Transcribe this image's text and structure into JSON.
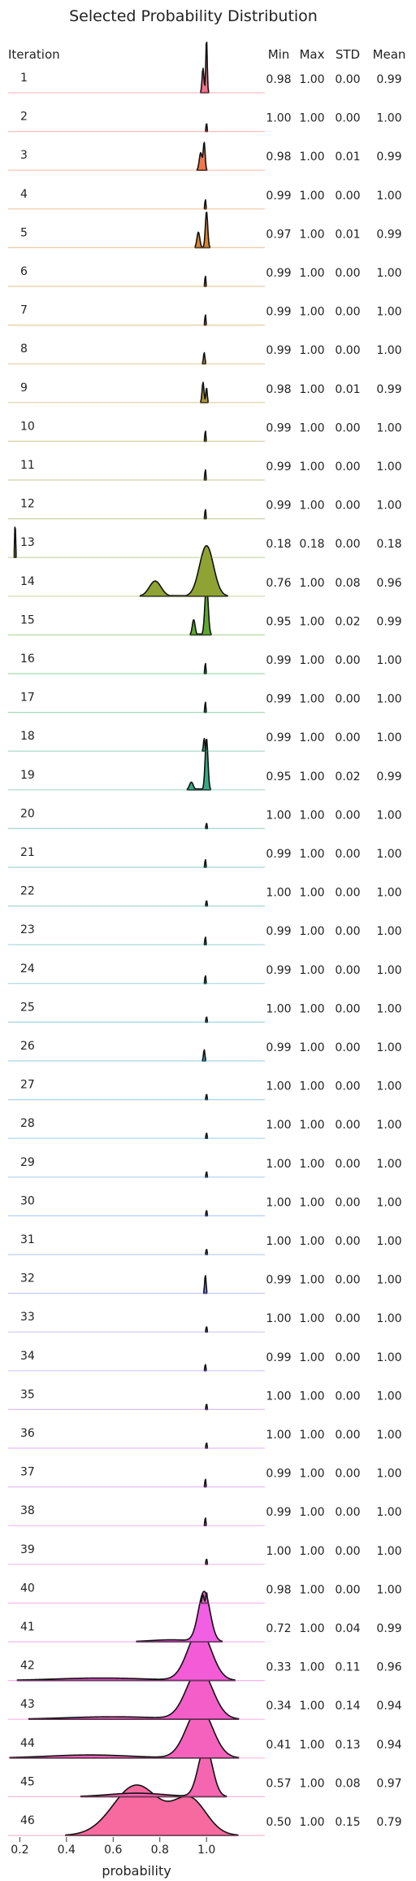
{
  "chart_data": {
    "type": "area",
    "title": "Selected Probability Distribution",
    "xlabel": "probability",
    "xlim": [
      0.15,
      1.25
    ],
    "xticks": [
      "0.2",
      "0.4",
      "0.6",
      "0.8",
      "1.0"
    ],
    "xtick_values": [
      0.2,
      0.4,
      0.6,
      0.8,
      1.0
    ],
    "row_header": "Iteration",
    "stat_headers": [
      "Min",
      "Max",
      "STD",
      "Mean"
    ],
    "series": [
      {
        "name": "1",
        "min": "0.98",
        "max": "1.00",
        "std": "0.00",
        "mean": "0.99",
        "color": "#f77189",
        "components": [
          [
            0.985,
            0.004,
            0.45
          ],
          [
            1.0,
            0.003,
            1.0
          ]
        ]
      },
      {
        "name": "2",
        "min": "1.00",
        "max": "1.00",
        "std": "0.00",
        "mean": "1.00",
        "color": "#f7736e",
        "components": [
          [
            1.0,
            0.002,
            0.15
          ]
        ]
      },
      {
        "name": "3",
        "min": "0.98",
        "max": "1.00",
        "std": "0.01",
        "mean": "0.99",
        "color": "#f3764a",
        "components": [
          [
            0.975,
            0.006,
            0.35
          ],
          [
            0.99,
            0.004,
            0.55
          ]
        ]
      },
      {
        "name": "4",
        "min": "0.99",
        "max": "1.00",
        "std": "0.00",
        "mean": "1.00",
        "color": "#e7802f",
        "components": [
          [
            0.995,
            0.002,
            0.18
          ]
        ]
      },
      {
        "name": "5",
        "min": "0.97",
        "max": "1.00",
        "std": "0.01",
        "mean": "0.99",
        "color": "#d98532",
        "components": [
          [
            0.965,
            0.006,
            0.3
          ],
          [
            1.0,
            0.005,
            0.7
          ]
        ]
      },
      {
        "name": "6",
        "min": "0.99",
        "max": "1.00",
        "std": "0.00",
        "mean": "1.00",
        "color": "#ce8b32",
        "components": [
          [
            0.995,
            0.002,
            0.2
          ]
        ]
      },
      {
        "name": "7",
        "min": "0.99",
        "max": "1.00",
        "std": "0.00",
        "mean": "1.00",
        "color": "#c38f32",
        "components": [
          [
            0.995,
            0.002,
            0.2
          ]
        ]
      },
      {
        "name": "8",
        "min": "0.99",
        "max": "1.00",
        "std": "0.00",
        "mean": "1.00",
        "color": "#b99332",
        "components": [
          [
            0.99,
            0.003,
            0.22
          ]
        ]
      },
      {
        "name": "9",
        "min": "0.98",
        "max": "1.00",
        "std": "0.01",
        "mean": "0.99",
        "color": "#ae9632",
        "components": [
          [
            0.985,
            0.004,
            0.4
          ],
          [
            1.0,
            0.003,
            0.3
          ]
        ]
      },
      {
        "name": "10",
        "min": "0.99",
        "max": "1.00",
        "std": "0.00",
        "mean": "1.00",
        "color": "#a39a32",
        "components": [
          [
            0.995,
            0.002,
            0.2
          ]
        ]
      },
      {
        "name": "11",
        "min": "0.99",
        "max": "1.00",
        "std": "0.00",
        "mean": "1.00",
        "color": "#979d32",
        "components": [
          [
            0.995,
            0.002,
            0.2
          ]
        ]
      },
      {
        "name": "12",
        "min": "0.99",
        "max": "1.00",
        "std": "0.00",
        "mean": "1.00",
        "color": "#8ba032",
        "components": [
          [
            0.995,
            0.002,
            0.18
          ]
        ]
      },
      {
        "name": "13",
        "min": "0.18",
        "max": "0.18",
        "std": "0.00",
        "mean": "0.18",
        "color": "#7ca432",
        "components": [
          [
            0.18,
            0.002,
            0.6
          ]
        ]
      },
      {
        "name": "14",
        "min": "0.76",
        "max": "1.00",
        "std": "0.08",
        "mean": "0.96",
        "color": "#8fa335",
        "components": [
          [
            0.78,
            0.025,
            0.3
          ],
          [
            1.0,
            0.03,
            1.0
          ]
        ]
      },
      {
        "name": "15",
        "min": "0.95",
        "max": "1.00",
        "std": "0.02",
        "mean": "0.99",
        "color": "#5eaa32",
        "components": [
          [
            0.945,
            0.006,
            0.3
          ],
          [
            1.0,
            0.007,
            1.0
          ]
        ]
      },
      {
        "name": "16",
        "min": "0.99",
        "max": "1.00",
        "std": "0.00",
        "mean": "1.00",
        "color": "#35ae4f",
        "components": [
          [
            0.995,
            0.002,
            0.2
          ]
        ]
      },
      {
        "name": "17",
        "min": "0.99",
        "max": "1.00",
        "std": "0.00",
        "mean": "1.00",
        "color": "#34ad69",
        "components": [
          [
            0.995,
            0.002,
            0.2
          ]
        ]
      },
      {
        "name": "18",
        "min": "0.99",
        "max": "1.00",
        "std": "0.00",
        "mean": "1.00",
        "color": "#35ac79",
        "components": [
          [
            0.99,
            0.003,
            0.25
          ]
        ]
      },
      {
        "name": "19",
        "min": "0.95",
        "max": "1.00",
        "std": "0.02",
        "mean": "0.99",
        "color": "#36ab86",
        "components": [
          [
            0.935,
            0.008,
            0.15
          ],
          [
            1.0,
            0.006,
            1.0
          ]
        ]
      },
      {
        "name": "20",
        "min": "1.00",
        "max": "1.00",
        "std": "0.00",
        "mean": "1.00",
        "color": "#37aa91",
        "components": [
          [
            1.0,
            0.002,
            0.1
          ]
        ]
      },
      {
        "name": "21",
        "min": "0.99",
        "max": "1.00",
        "std": "0.00",
        "mean": "1.00",
        "color": "#37a99b",
        "components": [
          [
            0.995,
            0.002,
            0.15
          ]
        ]
      },
      {
        "name": "22",
        "min": "1.00",
        "max": "1.00",
        "std": "0.00",
        "mean": "1.00",
        "color": "#38a8a4",
        "components": [
          [
            1.0,
            0.002,
            0.1
          ]
        ]
      },
      {
        "name": "23",
        "min": "0.99",
        "max": "1.00",
        "std": "0.00",
        "mean": "1.00",
        "color": "#39a7ad",
        "components": [
          [
            0.995,
            0.002,
            0.15
          ]
        ]
      },
      {
        "name": "24",
        "min": "0.99",
        "max": "1.00",
        "std": "0.00",
        "mean": "1.00",
        "color": "#3aa6b6",
        "components": [
          [
            0.995,
            0.002,
            0.15
          ]
        ]
      },
      {
        "name": "25",
        "min": "1.00",
        "max": "1.00",
        "std": "0.00",
        "mean": "1.00",
        "color": "#3ba5c0",
        "components": [
          [
            1.0,
            0.002,
            0.1
          ]
        ]
      },
      {
        "name": "26",
        "min": "0.99",
        "max": "1.00",
        "std": "0.00",
        "mean": "1.00",
        "color": "#3ca3ca",
        "components": [
          [
            0.99,
            0.003,
            0.22
          ]
        ]
      },
      {
        "name": "27",
        "min": "1.00",
        "max": "1.00",
        "std": "0.00",
        "mean": "1.00",
        "color": "#3ea1d6",
        "components": [
          [
            1.0,
            0.002,
            0.1
          ]
        ]
      },
      {
        "name": "28",
        "min": "1.00",
        "max": "1.00",
        "std": "0.00",
        "mean": "1.00",
        "color": "#419ee3",
        "components": [
          [
            1.0,
            0.002,
            0.1
          ]
        ]
      },
      {
        "name": "29",
        "min": "1.00",
        "max": "1.00",
        "std": "0.00",
        "mean": "1.00",
        "color": "#4a9af0",
        "components": [
          [
            1.0,
            0.002,
            0.1
          ]
        ]
      },
      {
        "name": "30",
        "min": "1.00",
        "max": "1.00",
        "std": "0.00",
        "mean": "1.00",
        "color": "#5d95f4",
        "components": [
          [
            1.0,
            0.002,
            0.1
          ]
        ]
      },
      {
        "name": "31",
        "min": "1.00",
        "max": "1.00",
        "std": "0.00",
        "mean": "1.00",
        "color": "#6f8ff4",
        "components": [
          [
            1.0,
            0.002,
            0.1
          ]
        ]
      },
      {
        "name": "32",
        "min": "0.99",
        "max": "1.00",
        "std": "0.00",
        "mean": "1.00",
        "color": "#8189f4",
        "components": [
          [
            0.995,
            0.003,
            0.35
          ]
        ]
      },
      {
        "name": "33",
        "min": "1.00",
        "max": "1.00",
        "std": "0.00",
        "mean": "1.00",
        "color": "#9283f4",
        "components": [
          [
            1.0,
            0.002,
            0.1
          ]
        ]
      },
      {
        "name": "34",
        "min": "0.99",
        "max": "1.00",
        "std": "0.00",
        "mean": "1.00",
        "color": "#a37cf4",
        "components": [
          [
            0.995,
            0.002,
            0.12
          ]
        ]
      },
      {
        "name": "35",
        "min": "1.00",
        "max": "1.00",
        "std": "0.00",
        "mean": "1.00",
        "color": "#b375f4",
        "components": [
          [
            1.0,
            0.002,
            0.1
          ]
        ]
      },
      {
        "name": "36",
        "min": "1.00",
        "max": "1.00",
        "std": "0.00",
        "mean": "1.00",
        "color": "#c26ef4",
        "components": [
          [
            1.0,
            0.002,
            0.1
          ]
        ]
      },
      {
        "name": "37",
        "min": "0.99",
        "max": "1.00",
        "std": "0.00",
        "mean": "1.00",
        "color": "#d068f4",
        "components": [
          [
            0.995,
            0.002,
            0.15
          ]
        ]
      },
      {
        "name": "38",
        "min": "0.99",
        "max": "1.00",
        "std": "0.00",
        "mean": "1.00",
        "color": "#dd64f4",
        "components": [
          [
            0.995,
            0.002,
            0.15
          ]
        ]
      },
      {
        "name": "39",
        "min": "1.00",
        "max": "1.00",
        "std": "0.00",
        "mean": "1.00",
        "color": "#e86ce8",
        "components": [
          [
            1.0,
            0.002,
            0.1
          ]
        ]
      },
      {
        "name": "40",
        "min": "0.98",
        "max": "1.00",
        "std": "0.00",
        "mean": "1.00",
        "color": "#ef6ad8",
        "components": [
          [
            0.985,
            0.004,
            0.15
          ],
          [
            1.0,
            0.003,
            0.2
          ]
        ]
      },
      {
        "name": "41",
        "min": "0.72",
        "max": "1.00",
        "std": "0.04",
        "mean": "0.99",
        "color": "#f160e4",
        "components": [
          [
            0.85,
            0.09,
            0.04
          ],
          [
            0.99,
            0.025,
            1.0
          ]
        ]
      },
      {
        "name": "42",
        "min": "0.33",
        "max": "1.00",
        "std": "0.11",
        "mean": "0.96",
        "color": "#f35cd6",
        "components": [
          [
            0.55,
            0.2,
            0.05
          ],
          [
            0.97,
            0.05,
            1.0
          ]
        ]
      },
      {
        "name": "43",
        "min": "0.34",
        "max": "1.00",
        "std": "0.14",
        "mean": "0.94",
        "color": "#f45ec9",
        "components": [
          [
            0.6,
            0.2,
            0.05
          ],
          [
            0.97,
            0.055,
            1.0
          ]
        ]
      },
      {
        "name": "44",
        "min": "0.41",
        "max": "1.00",
        "std": "0.13",
        "mean": "0.94",
        "color": "#f562bd",
        "components": [
          [
            0.5,
            0.18,
            0.06
          ],
          [
            0.97,
            0.055,
            1.0
          ]
        ]
      },
      {
        "name": "45",
        "min": "0.57",
        "max": "1.00",
        "std": "0.08",
        "mean": "0.97",
        "color": "#f566b1",
        "components": [
          [
            0.7,
            0.12,
            0.07
          ],
          [
            0.995,
            0.03,
            1.0
          ]
        ]
      },
      {
        "name": "46",
        "min": "0.50",
        "max": "1.00",
        "std": "0.15",
        "mean": "0.79",
        "color": "#f66aa0",
        "components": [
          [
            0.7,
            0.1,
            1.0
          ],
          [
            0.93,
            0.07,
            0.7
          ]
        ]
      }
    ]
  }
}
